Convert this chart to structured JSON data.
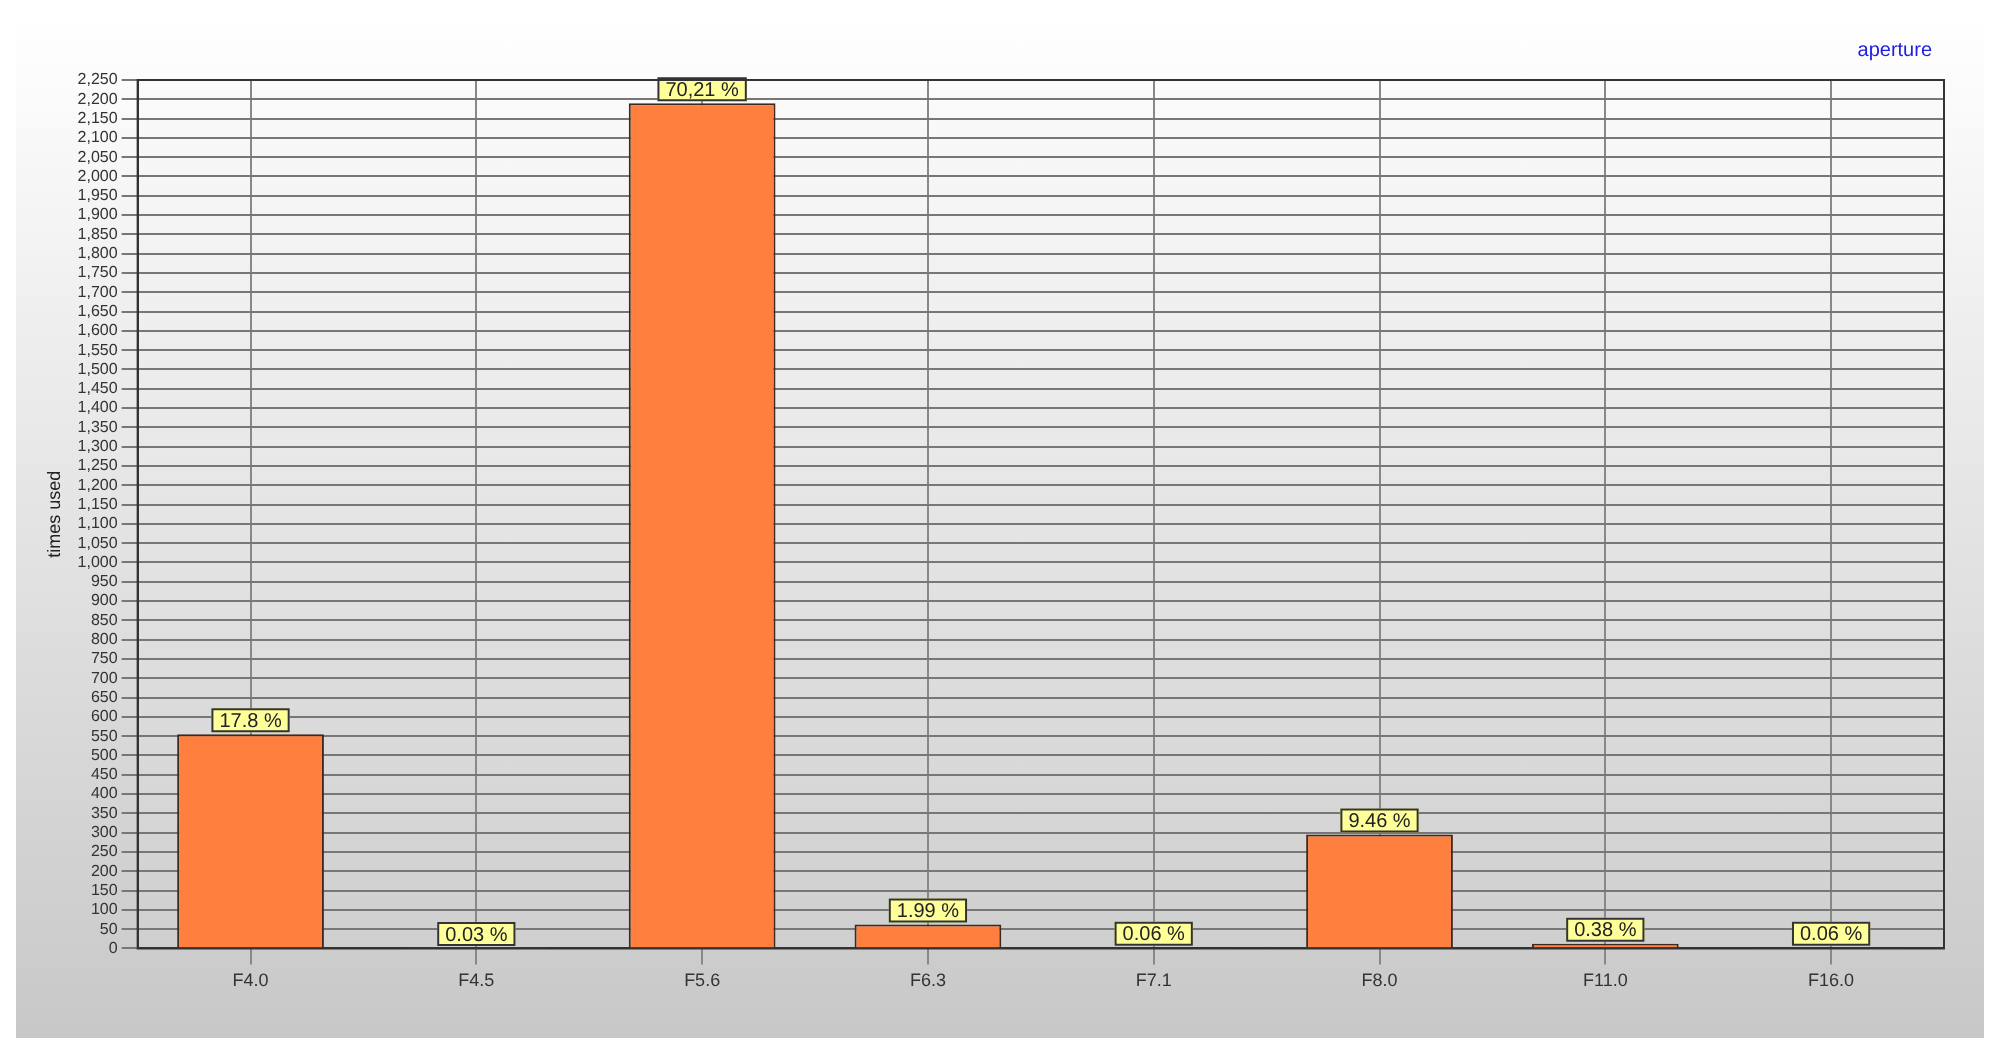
{
  "chart_data": {
    "type": "bar",
    "ylabel": "times used",
    "categories": [
      "F4.0",
      "F4.5",
      "F5.6",
      "F6.3",
      "F7.1",
      "F8.0",
      "F11.0",
      "F16.0"
    ],
    "series": [
      {
        "name": "aperture",
        "color": "#ff7f3f",
        "values": [
          555,
          1,
          2190,
          62,
          2,
          295,
          12,
          2
        ]
      }
    ],
    "annotations": [
      {
        "text": "17.8 %",
        "x": "F4.0",
        "y": 555
      },
      {
        "text": "0.03 %",
        "x": "F4.5",
        "y": 1
      },
      {
        "text": "70,21 %",
        "x": "F5.6",
        "y": 2190
      },
      {
        "text": "1.99 %",
        "x": "F6.3",
        "y": 62
      },
      {
        "text": "0.06 %",
        "x": "F7.1",
        "y": 2
      },
      {
        "text": "9.46 %",
        "x": "F8.0",
        "y": 295
      },
      {
        "text": "0.38 %",
        "x": "F11.0",
        "y": 12
      },
      {
        "text": "0.06 %",
        "x": "F16.0",
        "y": 2
      }
    ],
    "ylim": [
      0,
      2250
    ],
    "yticks": [
      0,
      50,
      100,
      150,
      200,
      250,
      300,
      350,
      400,
      450,
      500,
      550,
      600,
      650,
      700,
      750,
      800,
      850,
      900,
      950,
      {
        "value": 1000,
        "label": "1,000"
      },
      {
        "value": 1050,
        "label": "1,050"
      },
      {
        "value": 1100,
        "label": "1,100"
      },
      {
        "value": 1150,
        "label": "1,150"
      },
      {
        "value": 1200,
        "label": "1,200"
      },
      {
        "value": 1250,
        "label": "1,250"
      },
      {
        "value": 1300,
        "label": "1,300"
      },
      {
        "value": 1350,
        "label": "1,350"
      },
      {
        "value": 1400,
        "label": "1,400"
      },
      {
        "value": 1450,
        "label": "1,450"
      },
      {
        "value": 1500,
        "label": "1,500"
      },
      {
        "value": 1550,
        "label": "1,550"
      },
      {
        "value": 1600,
        "label": "1,600"
      },
      {
        "value": 1650,
        "label": "1,650"
      },
      {
        "value": 1700,
        "label": "1,700"
      },
      {
        "value": 1750,
        "label": "1,750"
      },
      {
        "value": 1800,
        "label": "1,800"
      },
      {
        "value": 1850,
        "label": "1,850"
      },
      {
        "value": 1900,
        "label": "1,900"
      },
      {
        "value": 1950,
        "label": "1,950"
      },
      {
        "value": 2000,
        "label": "2,000"
      },
      {
        "value": 2050,
        "label": "2,050"
      },
      {
        "value": 2100,
        "label": "2,100"
      },
      {
        "value": 2150,
        "label": "2,150"
      },
      {
        "value": 2200,
        "label": "2,200"
      },
      {
        "value": 2250,
        "label": "2,250"
      }
    ],
    "grid": true,
    "legend": "top right"
  }
}
